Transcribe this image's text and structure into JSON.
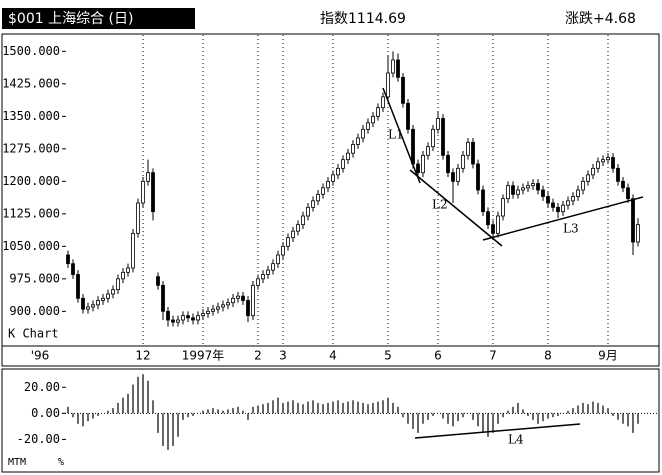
{
  "header": {
    "title": "$001 上海综合 (日)",
    "index": "指数1114.69",
    "change": "涨跌+4.68"
  },
  "chart_data": [
    {
      "type": "candlestick",
      "label": "K Chart",
      "categories": [
        "'96",
        null,
        null,
        null,
        null,
        null,
        null,
        null,
        null,
        null,
        null,
        null,
        null,
        null,
        null,
        "12",
        null,
        null,
        null,
        null,
        null,
        null,
        null,
        null,
        null,
        null,
        null,
        "1997年",
        null,
        null,
        null,
        null,
        null,
        null,
        null,
        null,
        null,
        null,
        "2",
        null,
        null,
        null,
        null,
        "3",
        null,
        null,
        null,
        null,
        null,
        null,
        null,
        null,
        null,
        "4",
        null,
        null,
        null,
        null,
        null,
        null,
        null,
        null,
        null,
        null,
        "5",
        null,
        null,
        null,
        null,
        null,
        null,
        null,
        null,
        null,
        "6",
        null,
        null,
        null,
        null,
        null,
        null,
        null,
        null,
        null,
        null,
        "7",
        null,
        null,
        null,
        null,
        null,
        null,
        null,
        null,
        null,
        null,
        "8",
        null,
        null,
        null,
        null,
        null,
        null,
        null,
        null,
        null,
        null,
        null,
        "9月",
        null,
        null,
        null,
        null,
        null,
        null
      ],
      "open": [
        1030,
        1010,
        985,
        930,
        905,
        910,
        915,
        925,
        930,
        940,
        950,
        975,
        990,
        1000,
        1080,
        1150,
        1200,
        1220,
        980,
        960,
        900,
        880,
        875,
        880,
        890,
        885,
        880,
        890,
        895,
        900,
        905,
        910,
        915,
        920,
        930,
        935,
        925,
        890,
        960,
        975,
        985,
        995,
        1010,
        1030,
        1050,
        1070,
        1085,
        1100,
        1120,
        1140,
        1155,
        1170,
        1185,
        1200,
        1215,
        1230,
        1250,
        1265,
        1285,
        1300,
        1320,
        1335,
        1350,
        1370,
        1395,
        1450,
        1480,
        1440,
        1380,
        1320,
        1240,
        1220,
        1260,
        1280,
        1320,
        1345,
        1260,
        1220,
        1200,
        1230,
        1260,
        1290,
        1240,
        1180,
        1130,
        1100,
        1080,
        1120,
        1160,
        1190,
        1170,
        1180,
        1185,
        1190,
        1195,
        1180,
        1165,
        1150,
        1140,
        1130,
        1145,
        1155,
        1165,
        1180,
        1200,
        1215,
        1230,
        1245,
        1250,
        1255,
        1230,
        1200,
        1185,
        1160,
        1060
      ],
      "high": [
        1040,
        1020,
        995,
        940,
        920,
        925,
        935,
        940,
        950,
        960,
        985,
        1000,
        1010,
        1090,
        1160,
        1210,
        1250,
        1230,
        990,
        970,
        910,
        890,
        890,
        900,
        900,
        895,
        900,
        905,
        910,
        915,
        920,
        925,
        930,
        940,
        945,
        945,
        935,
        970,
        985,
        995,
        1005,
        1020,
        1040,
        1060,
        1080,
        1095,
        1110,
        1130,
        1150,
        1165,
        1180,
        1195,
        1210,
        1225,
        1240,
        1260,
        1275,
        1295,
        1310,
        1330,
        1345,
        1360,
        1380,
        1405,
        1490,
        1500,
        1495,
        1450,
        1390,
        1330,
        1250,
        1270,
        1290,
        1330,
        1360,
        1355,
        1270,
        1230,
        1240,
        1270,
        1300,
        1300,
        1250,
        1190,
        1140,
        1110,
        1130,
        1170,
        1200,
        1200,
        1190,
        1195,
        1200,
        1205,
        1205,
        1190,
        1175,
        1160,
        1150,
        1155,
        1165,
        1175,
        1190,
        1210,
        1225,
        1240,
        1255,
        1260,
        1265,
        1265,
        1240,
        1210,
        1195,
        1170,
        1115
      ],
      "low": [
        1000,
        975,
        920,
        895,
        895,
        900,
        905,
        915,
        920,
        930,
        940,
        965,
        980,
        990,
        1070,
        1140,
        1190,
        1110,
        950,
        880,
        865,
        865,
        865,
        870,
        875,
        870,
        870,
        880,
        885,
        890,
        895,
        900,
        905,
        910,
        920,
        915,
        875,
        880,
        950,
        965,
        975,
        985,
        1000,
        1020,
        1040,
        1060,
        1075,
        1090,
        1110,
        1130,
        1145,
        1160,
        1175,
        1190,
        1205,
        1220,
        1240,
        1255,
        1275,
        1290,
        1310,
        1325,
        1340,
        1360,
        1385,
        1440,
        1430,
        1370,
        1310,
        1230,
        1210,
        1210,
        1250,
        1270,
        1310,
        1250,
        1210,
        1150,
        1190,
        1220,
        1250,
        1230,
        1170,
        1120,
        1090,
        1065,
        1070,
        1110,
        1150,
        1160,
        1160,
        1170,
        1175,
        1180,
        1170,
        1155,
        1140,
        1130,
        1115,
        1120,
        1135,
        1145,
        1155,
        1170,
        1190,
        1205,
        1220,
        1235,
        1240,
        1220,
        1190,
        1175,
        1150,
        1030,
        1050
      ],
      "close": [
        1010,
        985,
        930,
        905,
        910,
        915,
        925,
        930,
        940,
        950,
        975,
        990,
        1000,
        1080,
        1150,
        1200,
        1220,
        1130,
        960,
        900,
        880,
        875,
        880,
        890,
        885,
        880,
        890,
        895,
        900,
        905,
        910,
        915,
        920,
        930,
        935,
        925,
        890,
        960,
        975,
        985,
        995,
        1010,
        1030,
        1050,
        1070,
        1085,
        1100,
        1120,
        1140,
        1155,
        1170,
        1185,
        1200,
        1215,
        1230,
        1250,
        1265,
        1285,
        1300,
        1320,
        1335,
        1350,
        1370,
        1395,
        1450,
        1480,
        1440,
        1380,
        1320,
        1240,
        1220,
        1260,
        1280,
        1320,
        1345,
        1260,
        1220,
        1200,
        1230,
        1260,
        1290,
        1240,
        1180,
        1130,
        1100,
        1080,
        1120,
        1160,
        1190,
        1170,
        1180,
        1185,
        1190,
        1195,
        1180,
        1165,
        1150,
        1140,
        1130,
        1145,
        1155,
        1165,
        1180,
        1200,
        1215,
        1230,
        1245,
        1250,
        1255,
        1230,
        1200,
        1185,
        1160,
        1060,
        1100
      ],
      "ylim": [
        820,
        1540
      ],
      "yticks": [
        {
          "value": 900,
          "label": "900.000"
        },
        {
          "value": 975,
          "label": "975.000"
        },
        {
          "value": 1050,
          "label": "1050.000"
        },
        {
          "value": 1125,
          "label": "1125.000"
        },
        {
          "value": 1200,
          "label": "1200.000"
        },
        {
          "value": 1275,
          "label": "1275.000"
        },
        {
          "value": 1350,
          "label": "1350.000"
        },
        {
          "value": 1425,
          "label": "1425.000"
        },
        {
          "value": 1500,
          "label": "1500.000"
        }
      ],
      "grid": true,
      "color": "#000000",
      "annotations": [
        "L1",
        "L2",
        "L3"
      ]
    },
    {
      "type": "bar",
      "label": "MTM",
      "unit": "%",
      "values": [
        5,
        -3,
        -8,
        -10,
        -6,
        -4,
        -2,
        0,
        2,
        4,
        8,
        12,
        15,
        22,
        28,
        30,
        25,
        10,
        -15,
        -25,
        -28,
        -25,
        -18,
        -5,
        -3,
        -2,
        0,
        2,
        3,
        4,
        3,
        2,
        3,
        4,
        5,
        2,
        -5,
        5,
        6,
        7,
        8,
        10,
        12,
        8,
        9,
        10,
        8,
        7,
        9,
        10,
        8,
        7,
        8,
        9,
        10,
        8,
        9,
        10,
        9,
        8,
        7,
        8,
        9,
        10,
        12,
        8,
        5,
        -3,
        -8,
        -12,
        -15,
        -8,
        -5,
        -2,
        0,
        -4,
        -8,
        -10,
        -6,
        -3,
        0,
        -5,
        -10,
        -15,
        -18,
        -15,
        -8,
        -3,
        2,
        5,
        8,
        3,
        -2,
        -5,
        -8,
        -6,
        -4,
        -3,
        -2,
        0,
        2,
        4,
        6,
        8,
        7,
        9,
        8,
        6,
        4,
        -2,
        -5,
        -8,
        -10,
        -15,
        -8
      ],
      "ylim": [
        -45,
        34
      ],
      "yticks": [
        {
          "value": -20,
          "label": "-20.00"
        },
        {
          "value": 0,
          "label": "0.00"
        },
        {
          "value": 20,
          "label": "20.00"
        }
      ],
      "color": "#000000",
      "annotations": [
        "L4"
      ]
    }
  ]
}
